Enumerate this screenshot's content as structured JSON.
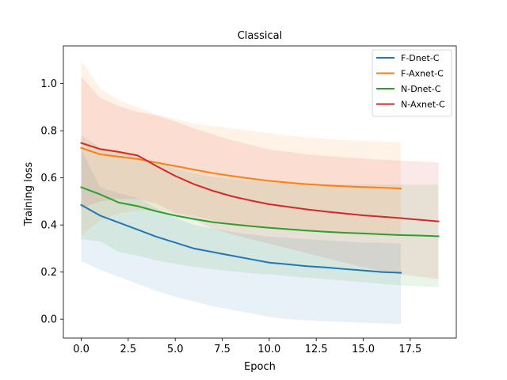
{
  "chart_data": {
    "type": "line",
    "title": "Classical",
    "xlabel": "Epoch",
    "ylabel": "Training loss",
    "xlim": [
      -0.95,
      19.95
    ],
    "ylim": [
      -0.08,
      1.16
    ],
    "xticks": [
      0.0,
      2.5,
      5.0,
      7.5,
      10.0,
      12.5,
      15.0,
      17.5
    ],
    "xtick_labels": [
      "0.0",
      "2.5",
      "5.0",
      "7.5",
      "10.0",
      "12.5",
      "15.0",
      "17.5"
    ],
    "yticks": [
      0.0,
      0.2,
      0.4,
      0.6,
      0.8,
      1.0
    ],
    "ytick_labels": [
      "0.0",
      "0.2",
      "0.4",
      "0.6",
      "0.8",
      "1.0"
    ],
    "grid": false,
    "legend_position": "top-right",
    "series": [
      {
        "name": "F-Dnet-C",
        "color": "#1f77b4",
        "x": [
          0,
          1,
          2,
          3,
          4,
          5,
          6,
          7,
          8,
          9,
          10,
          11,
          12,
          13,
          14,
          15,
          16,
          17
        ],
        "mean": [
          0.485,
          0.44,
          0.41,
          0.38,
          0.35,
          0.325,
          0.3,
          0.285,
          0.27,
          0.255,
          0.24,
          0.233,
          0.225,
          0.22,
          0.213,
          0.207,
          0.2,
          0.197
        ],
        "upper": [
          0.72,
          0.56,
          0.535,
          0.515,
          0.47,
          0.43,
          0.4,
          0.385,
          0.37,
          0.36,
          0.35,
          0.345,
          0.34,
          0.335,
          0.33,
          0.325,
          0.325,
          0.32
        ],
        "lower": [
          0.245,
          0.21,
          0.18,
          0.15,
          0.12,
          0.095,
          0.075,
          0.055,
          0.04,
          0.025,
          0.01,
          0.0,
          -0.005,
          -0.01,
          -0.012,
          -0.015,
          -0.018,
          -0.02
        ]
      },
      {
        "name": "F-Axnet-C",
        "color": "#ff7f0e",
        "x": [
          0,
          1,
          2,
          3,
          4,
          5,
          6,
          7,
          8,
          9,
          10,
          11,
          12,
          13,
          14,
          15,
          16,
          17
        ],
        "mean": [
          0.727,
          0.7,
          0.69,
          0.68,
          0.665,
          0.65,
          0.635,
          0.62,
          0.608,
          0.597,
          0.587,
          0.58,
          0.573,
          0.568,
          0.564,
          0.561,
          0.558,
          0.555
        ],
        "upper": [
          1.1,
          0.98,
          0.93,
          0.9,
          0.87,
          0.85,
          0.83,
          0.82,
          0.81,
          0.8,
          0.79,
          0.78,
          0.772,
          0.766,
          0.76,
          0.757,
          0.754,
          0.752
        ],
        "lower": [
          0.355,
          0.42,
          0.45,
          0.46,
          0.46,
          0.45,
          0.44,
          0.42,
          0.405,
          0.394,
          0.384,
          0.38,
          0.374,
          0.37,
          0.368,
          0.365,
          0.362,
          0.358
        ]
      },
      {
        "name": "N-Dnet-C",
        "color": "#2ca02c",
        "x": [
          0,
          1,
          2,
          3,
          4,
          5,
          6,
          7,
          8,
          9,
          10,
          11,
          12,
          13,
          14,
          15,
          16,
          17,
          18,
          19
        ],
        "mean": [
          0.56,
          0.53,
          0.495,
          0.48,
          0.458,
          0.44,
          0.425,
          0.412,
          0.403,
          0.395,
          0.388,
          0.382,
          0.376,
          0.371,
          0.367,
          0.364,
          0.36,
          0.357,
          0.355,
          0.352
        ],
        "upper": [
          0.78,
          0.73,
          0.71,
          0.69,
          0.665,
          0.64,
          0.62,
          0.605,
          0.595,
          0.588,
          0.582,
          0.578,
          0.575,
          0.573,
          0.572,
          0.571,
          0.571,
          0.571,
          0.571,
          0.571
        ],
        "lower": [
          0.34,
          0.33,
          0.285,
          0.27,
          0.25,
          0.235,
          0.222,
          0.212,
          0.203,
          0.195,
          0.19,
          0.183,
          0.176,
          0.17,
          0.163,
          0.157,
          0.15,
          0.143,
          0.14,
          0.135
        ]
      },
      {
        "name": "N-Axnet-C",
        "color": "#d62728",
        "x": [
          0,
          1,
          2,
          3,
          4,
          5,
          6,
          7,
          8,
          9,
          10,
          11,
          12,
          13,
          14,
          15,
          16,
          17,
          18,
          19
        ],
        "mean": [
          0.748,
          0.722,
          0.71,
          0.695,
          0.65,
          0.608,
          0.573,
          0.545,
          0.522,
          0.504,
          0.488,
          0.477,
          0.466,
          0.457,
          0.449,
          0.441,
          0.435,
          0.429,
          0.422,
          0.415
        ],
        "upper": [
          1.03,
          0.94,
          0.905,
          0.88,
          0.865,
          0.84,
          0.81,
          0.785,
          0.76,
          0.74,
          0.72,
          0.71,
          0.7,
          0.693,
          0.687,
          0.682,
          0.677,
          0.673,
          0.67,
          0.665
        ],
        "lower": [
          0.47,
          0.5,
          0.51,
          0.51,
          0.49,
          0.45,
          0.42,
          0.385,
          0.36,
          0.34,
          0.32,
          0.3,
          0.28,
          0.26,
          0.24,
          0.22,
          0.205,
          0.19,
          0.18,
          0.17
        ]
      }
    ]
  }
}
